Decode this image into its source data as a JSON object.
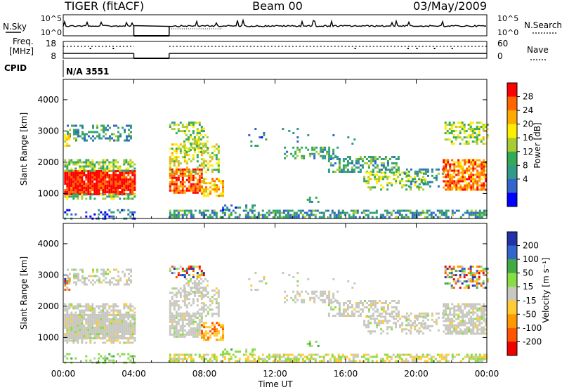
{
  "header": {
    "title": "TIGER (fitACF)",
    "beam": "Beam 00",
    "date": "03/May/2009"
  },
  "sky_panel": {
    "left_label": "N.Sky",
    "right_label": "N.Search",
    "ticks_left": [
      "10^5",
      "10^0"
    ],
    "ticks_right": [
      "10^5",
      "10^0"
    ]
  },
  "freq_panel": {
    "left_label_1": "Freq.",
    "left_label_2": "[MHz]",
    "right_label": "Nave",
    "ticks_left": [
      "18",
      "8"
    ],
    "ticks_right": [
      "60",
      "0"
    ]
  },
  "cpid": {
    "label": "CPID",
    "value": "N/A 3551"
  },
  "chart_data": [
    {
      "type": "heatmap",
      "name": "power",
      "ylabel": "Slant Range [km]",
      "xlabel": "Time UT",
      "y_ticks": [
        "4000",
        "3000",
        "2000",
        "1000"
      ],
      "ylim": [
        200,
        4650
      ],
      "colorbar_label": "Power [dB]",
      "colorbar_ticks": [
        "28",
        "24",
        "20",
        "16",
        "12",
        "8",
        "4"
      ],
      "colorbar_colors": [
        "#ff0000",
        "#ff6600",
        "#ffaa00",
        "#ffee00",
        "#aacc33",
        "#33aa55",
        "#339988",
        "#3366cc",
        "#0000ff"
      ],
      "data_gap_hours": [
        4.0,
        6.0
      ]
    },
    {
      "type": "heatmap",
      "name": "velocity",
      "ylabel": "Slant Range [km]",
      "xlabel": "Time UT",
      "y_ticks": [
        "4000",
        "3000",
        "2000",
        "1000"
      ],
      "ylim": [
        200,
        4650
      ],
      "colorbar_label": "Velocity [m s⁻¹]",
      "colorbar_ticks": [
        "200",
        "100",
        "50",
        "15",
        "-15",
        "-50",
        "-100",
        "-200"
      ],
      "colorbar_colors": [
        "#2233aa",
        "#3366cc",
        "#44aa44",
        "#88dd44",
        "#c8c8c0",
        "#ffcc33",
        "#ff9900",
        "#ff5500",
        "#ee0000"
      ],
      "data_gap_hours": [
        4.0,
        6.0
      ]
    }
  ],
  "x_axis": {
    "ticks": [
      "00:00",
      "04:00",
      "08:00",
      "12:00",
      "16:00",
      "20:00",
      "00:00"
    ],
    "label": "Time UT",
    "range_hours": [
      0,
      24
    ]
  }
}
